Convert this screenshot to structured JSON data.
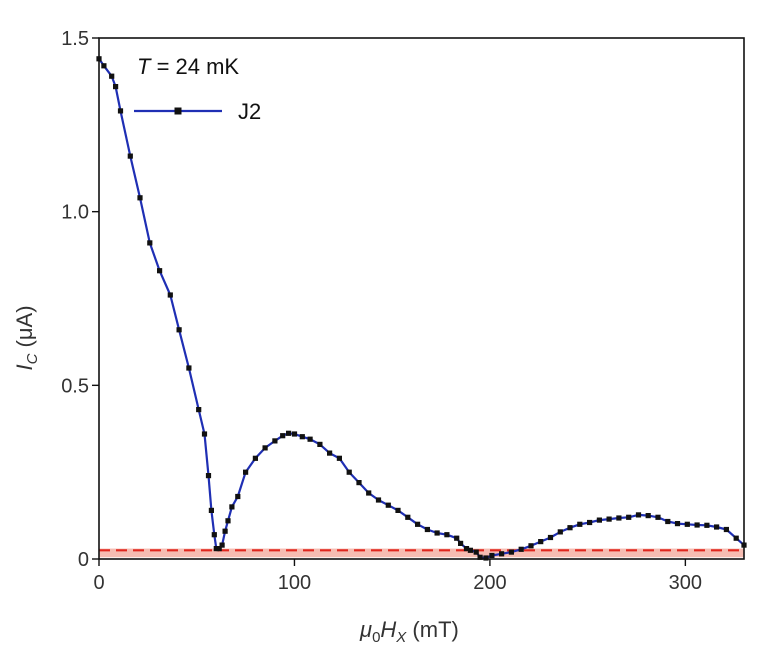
{
  "chart_data": {
    "type": "line",
    "title": "",
    "annotation": {
      "var": "T",
      "rest": " = 24 mK"
    },
    "xlabel": {
      "main": "μ",
      "sub1": "0",
      "mid": "H",
      "sub2": "X",
      "unit": " (mT)"
    },
    "ylabel": {
      "main": "I",
      "sub": "C",
      "unit": " (μA)"
    },
    "xlim": [
      0,
      330
    ],
    "ylim": [
      0,
      1.5
    ],
    "xticks": [
      0,
      100,
      200,
      300
    ],
    "xtick_labels": [
      "0",
      "100",
      "200",
      "300"
    ],
    "yticks": [
      0,
      0.5,
      1.0,
      1.5
    ],
    "ytick_labels": [
      "0",
      "0.5",
      "1.0",
      "1.5"
    ],
    "threshold": {
      "value": 0.025,
      "band": [
        0.005,
        0.03
      ],
      "color": "#e0261e",
      "band_color": "#f6bcb2"
    },
    "series": [
      {
        "name": "J2",
        "color": "#1f2fb4",
        "marker_color": "#111111",
        "x": [
          0,
          2.5,
          6.5,
          8.5,
          11,
          16,
          21,
          26,
          31,
          36.5,
          41,
          46,
          51,
          54,
          56,
          57.5,
          59,
          60,
          61.5,
          63,
          64.5,
          66,
          68,
          71,
          75,
          80,
          85,
          90,
          94,
          97,
          100,
          104,
          108,
          113,
          118,
          123,
          128,
          133,
          138,
          143,
          148,
          153,
          158,
          163,
          168,
          173,
          178,
          183,
          185,
          188,
          190,
          193,
          195,
          198,
          201,
          206,
          211,
          216,
          221,
          226,
          231,
          236,
          241,
          246,
          251,
          256,
          261,
          266,
          271,
          276,
          281,
          286,
          291,
          296,
          301,
          306,
          311,
          316,
          321,
          326,
          330
        ],
        "y": [
          1.44,
          1.42,
          1.39,
          1.36,
          1.29,
          1.16,
          1.04,
          0.91,
          0.83,
          0.76,
          0.66,
          0.55,
          0.43,
          0.36,
          0.24,
          0.14,
          0.07,
          0.03,
          0.03,
          0.04,
          0.08,
          0.11,
          0.15,
          0.18,
          0.25,
          0.29,
          0.32,
          0.34,
          0.355,
          0.362,
          0.36,
          0.352,
          0.345,
          0.33,
          0.305,
          0.29,
          0.25,
          0.22,
          0.19,
          0.17,
          0.155,
          0.14,
          0.12,
          0.1,
          0.085,
          0.075,
          0.07,
          0.06,
          0.045,
          0.03,
          0.025,
          0.02,
          0.005,
          0.003,
          0.01,
          0.015,
          0.02,
          0.028,
          0.038,
          0.05,
          0.062,
          0.078,
          0.09,
          0.1,
          0.105,
          0.112,
          0.115,
          0.118,
          0.12,
          0.127,
          0.125,
          0.12,
          0.108,
          0.102,
          0.1,
          0.098,
          0.097,
          0.092,
          0.085,
          0.06,
          0.04
        ]
      }
    ]
  }
}
